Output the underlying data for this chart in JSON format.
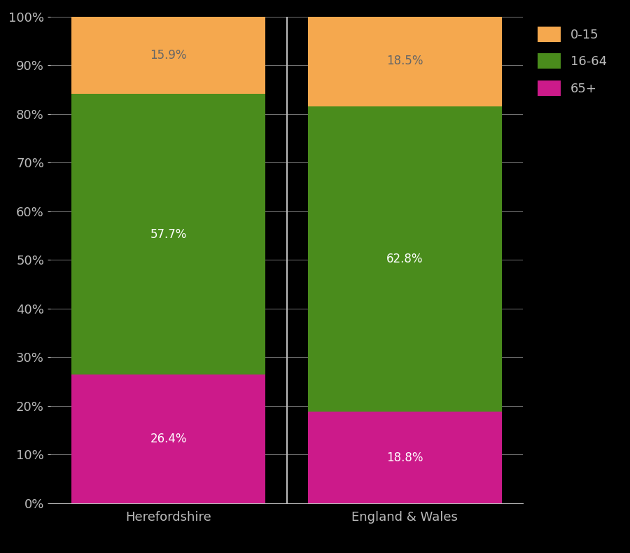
{
  "categories": [
    "Herefordshire",
    "England & Wales"
  ],
  "segments": {
    "65+": [
      26.4,
      18.8
    ],
    "16-64": [
      57.7,
      62.8
    ],
    "0-15": [
      15.9,
      18.5
    ]
  },
  "colors": {
    "65+": "#cc1a8a",
    "16-64": "#4a8c1c",
    "0-15": "#f5a84e"
  },
  "label_colors": {
    "65+": "#ffffff",
    "16-64": "#ffffff",
    "0-15": "#666666"
  },
  "background_color": "#000000",
  "axes_color": "#bbbbbb",
  "bar_width": 0.82,
  "ylim": [
    0,
    100
  ],
  "yticks": [
    0,
    10,
    20,
    30,
    40,
    50,
    60,
    70,
    80,
    90,
    100
  ],
  "ytick_labels": [
    "0%",
    "10%",
    "20%",
    "30%",
    "40%",
    "50%",
    "60%",
    "70%",
    "80%",
    "90%",
    "100%"
  ],
  "legend_labels": [
    "0-15",
    "16-64",
    "65+"
  ],
  "legend_colors": [
    "#f5a84e",
    "#4a8c1c",
    "#cc1a8a"
  ],
  "grid_color": "#888888",
  "font_size": 13,
  "label_font_size": 12,
  "separator_color": "#111111"
}
